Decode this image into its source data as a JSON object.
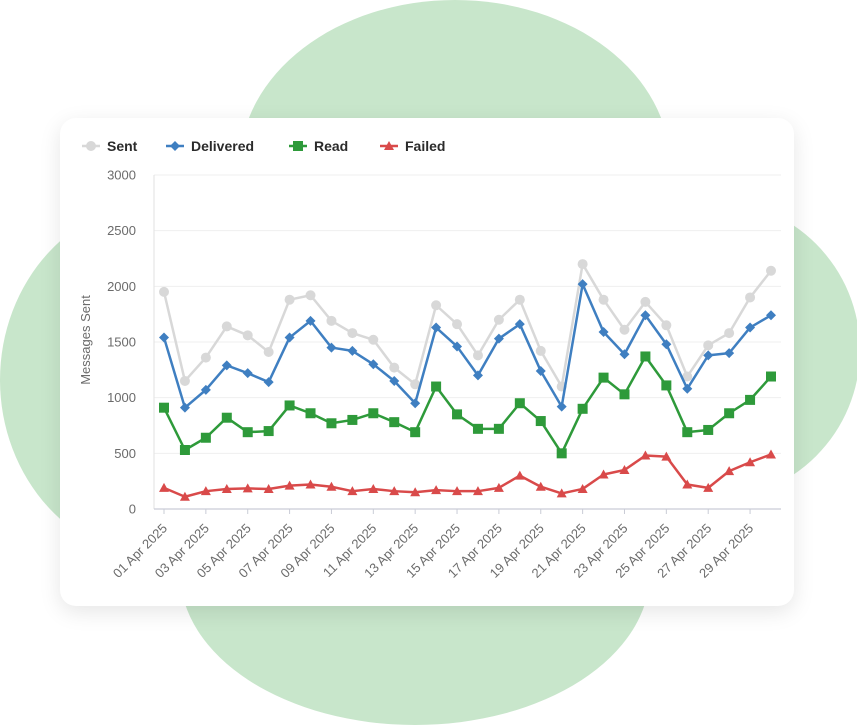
{
  "chart_data": {
    "type": "line",
    "title": "",
    "xlabel": "",
    "ylabel": "Messages Sent",
    "ylim": [
      0,
      3000
    ],
    "yticks": [
      0,
      500,
      1000,
      1500,
      2000,
      2500,
      3000
    ],
    "grid": true,
    "legend_position": "top-left",
    "x": [
      "01 Apr 2025",
      "02 Apr 2025",
      "03 Apr 2025",
      "04 Apr 2025",
      "05 Apr 2025",
      "06 Apr 2025",
      "07 Apr 2025",
      "08 Apr 2025",
      "09 Apr 2025",
      "10 Apr 2025",
      "11 Apr 2025",
      "12 Apr 2025",
      "13 Apr 2025",
      "14 Apr 2025",
      "15 Apr 2025",
      "16 Apr 2025",
      "17 Apr 2025",
      "18 Apr 2025",
      "19 Apr 2025",
      "20 Apr 2025",
      "21 Apr 2025",
      "22 Apr 2025",
      "23 Apr 2025",
      "24 Apr 2025",
      "25 Apr 2025",
      "26 Apr 2025",
      "27 Apr 2025",
      "28 Apr 2025",
      "29 Apr 2025",
      "30 Apr 2025"
    ],
    "xtick_labels": [
      "01 Apr 2025",
      "03 Apr 2025",
      "05 Apr 2025",
      "07 Apr 2025",
      "09 Apr 2025",
      "11 Apr 2025",
      "13 Apr 2025",
      "15 Apr 2025",
      "17 Apr 2025",
      "19 Apr 2025",
      "21 Apr 2025",
      "23 Apr 2025",
      "25 Apr 2025",
      "27 Apr 2025",
      "29 Apr 2025"
    ],
    "series": [
      {
        "name": "Sent",
        "color": "#d8d8d8",
        "marker": "circle",
        "values": [
          1950,
          1150,
          1360,
          1640,
          1560,
          1410,
          1880,
          1920,
          1690,
          1580,
          1520,
          1270,
          1120,
          1830,
          1660,
          1380,
          1700,
          1880,
          1420,
          1100,
          2200,
          1880,
          1610,
          1860,
          1650,
          1190,
          1470,
          1580,
          1900,
          2140
        ]
      },
      {
        "name": "Delivered",
        "color": "#3f7fc1",
        "marker": "diamond",
        "values": [
          1540,
          910,
          1070,
          1290,
          1220,
          1140,
          1540,
          1690,
          1450,
          1420,
          1300,
          1150,
          950,
          1630,
          1460,
          1200,
          1530,
          1660,
          1240,
          920,
          2020,
          1590,
          1390,
          1740,
          1480,
          1080,
          1380,
          1400,
          1630,
          1740
        ]
      },
      {
        "name": "Read",
        "color": "#2e9a3a",
        "marker": "square",
        "values": [
          910,
          530,
          640,
          820,
          690,
          700,
          930,
          860,
          770,
          800,
          860,
          780,
          690,
          1100,
          850,
          720,
          720,
          950,
          790,
          500,
          900,
          1180,
          1030,
          1370,
          1110,
          690,
          710,
          860,
          980,
          1190
        ]
      },
      {
        "name": "Failed",
        "color": "#d94a4a",
        "marker": "triangle",
        "values": [
          190,
          110,
          160,
          180,
          185,
          180,
          210,
          220,
          200,
          160,
          180,
          160,
          150,
          170,
          160,
          160,
          190,
          300,
          200,
          140,
          180,
          310,
          350,
          480,
          470,
          220,
          190,
          340,
          420,
          490
        ]
      }
    ]
  }
}
